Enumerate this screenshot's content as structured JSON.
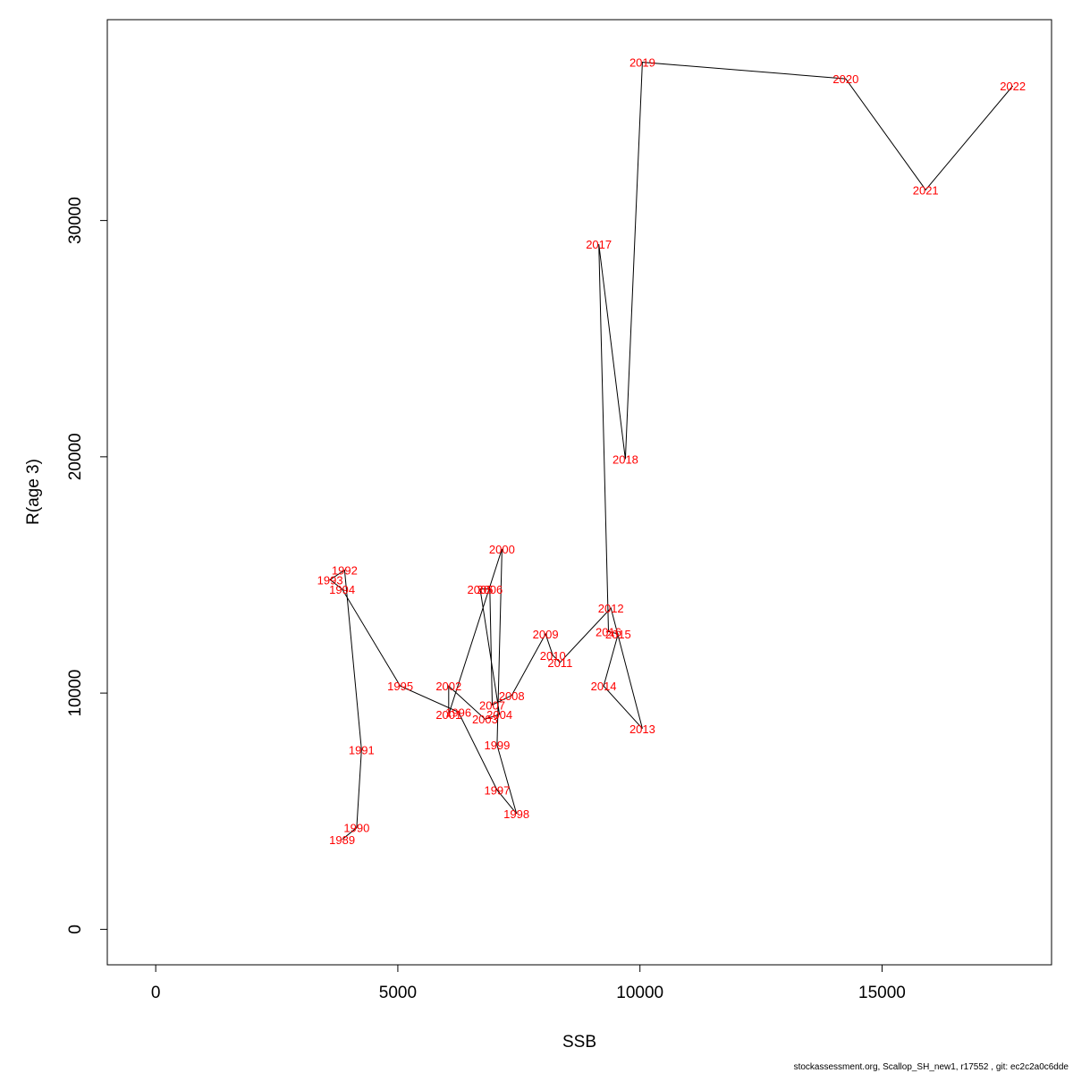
{
  "chart_data": {
    "type": "line",
    "xlabel": "SSB",
    "ylabel": "R(age 3)",
    "xlim": [
      -1000,
      18500
    ],
    "ylim": [
      -1500,
      38500
    ],
    "xticks": [
      0,
      5000,
      10000,
      15000
    ],
    "yticks": [
      0,
      10000,
      20000,
      30000
    ],
    "grid": false,
    "line_color": "#000000",
    "label_color": "#ff0000",
    "points": [
      {
        "year": "1989",
        "x": 3850,
        "y": 3800
      },
      {
        "year": "1990",
        "x": 4150,
        "y": 4300
      },
      {
        "year": "1991",
        "x": 4250,
        "y": 7600
      },
      {
        "year": "1992",
        "x": 3900,
        "y": 15200
      },
      {
        "year": "1993",
        "x": 3600,
        "y": 14800
      },
      {
        "year": "1994",
        "x": 3850,
        "y": 14400
      },
      {
        "year": "1995",
        "x": 5050,
        "y": 10300
      },
      {
        "year": "1996",
        "x": 6250,
        "y": 9200
      },
      {
        "year": "1997",
        "x": 7050,
        "y": 5900
      },
      {
        "year": "1998",
        "x": 7450,
        "y": 4900
      },
      {
        "year": "1999",
        "x": 7050,
        "y": 7800
      },
      {
        "year": "2000",
        "x": 7150,
        "y": 16100
      },
      {
        "year": "2001",
        "x": 6050,
        "y": 9100
      },
      {
        "year": "2002",
        "x": 6050,
        "y": 10300
      },
      {
        "year": "2003",
        "x": 6800,
        "y": 8900
      },
      {
        "year": "2004",
        "x": 7100,
        "y": 9100
      },
      {
        "year": "2005",
        "x": 6700,
        "y": 14400
      },
      {
        "year": "2006",
        "x": 6900,
        "y": 14400
      },
      {
        "year": "2007",
        "x": 6950,
        "y": 9500
      },
      {
        "year": "2008",
        "x": 7350,
        "y": 9900
      },
      {
        "year": "2009",
        "x": 8050,
        "y": 12500
      },
      {
        "year": "2010",
        "x": 8200,
        "y": 11600
      },
      {
        "year": "2011",
        "x": 8350,
        "y": 11300
      },
      {
        "year": "2012",
        "x": 9400,
        "y": 13600
      },
      {
        "year": "2013",
        "x": 10050,
        "y": 8500
      },
      {
        "year": "2014",
        "x": 9250,
        "y": 10300
      },
      {
        "year": "2015",
        "x": 9550,
        "y": 12500
      },
      {
        "year": "2016",
        "x": 9350,
        "y": 12600
      },
      {
        "year": "2017",
        "x": 9150,
        "y": 29000
      },
      {
        "year": "2018",
        "x": 9700,
        "y": 19900
      },
      {
        "year": "2019",
        "x": 10050,
        "y": 36700
      },
      {
        "year": "2020",
        "x": 14250,
        "y": 36000
      },
      {
        "year": "2021",
        "x": 15900,
        "y": 31300
      },
      {
        "year": "2022",
        "x": 17700,
        "y": 35700
      }
    ]
  },
  "footer_text": "stockassessment.org, Scallop_SH_new1, r17552 , git: ec2c2a0c6dde"
}
